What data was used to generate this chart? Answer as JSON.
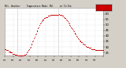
{
  "title": "Mil. Weather     Temperature Made: Mil     at 11:15a",
  "bg_color": "#d4d0c8",
  "plot_bg_color": "#ffffff",
  "line_color": "#cc0000",
  "legend_color": "#cc0000",
  "ylim": [
    22,
    65
  ],
  "y_ticks": [
    25,
    30,
    35,
    40,
    45,
    50,
    55,
    60,
    65
  ],
  "xlim": [
    0,
    1440
  ],
  "vline1": 180,
  "vline2": 780,
  "temps": [
    28,
    28,
    27,
    27,
    27,
    26,
    26,
    26,
    25,
    25,
    25,
    24,
    24,
    24,
    23,
    23,
    23,
    23,
    22,
    22,
    22,
    22,
    22,
    22,
    22,
    22,
    22,
    22,
    23,
    23,
    24,
    24,
    25,
    26,
    27,
    28,
    29,
    30,
    32,
    33,
    35,
    36,
    38,
    39,
    41,
    42,
    44,
    45,
    47,
    48,
    50,
    51,
    52,
    53,
    54,
    55,
    55,
    56,
    56,
    57,
    57,
    57,
    58,
    58,
    58,
    58,
    59,
    59,
    59,
    59,
    59,
    59,
    59,
    59,
    59,
    59,
    59,
    59,
    59,
    60,
    59,
    59,
    59,
    58,
    58,
    57,
    57,
    56,
    56,
    55,
    54,
    53,
    52,
    51,
    50,
    49,
    48,
    47,
    46,
    45,
    44,
    43,
    42,
    41,
    40,
    39,
    38,
    37,
    36,
    36,
    35,
    34,
    34,
    33,
    33,
    32,
    32,
    31,
    31,
    30,
    30,
    30,
    29,
    29,
    29,
    29,
    28,
    28,
    28,
    28,
    28,
    27,
    27,
    27,
    27,
    27,
    27,
    27,
    27,
    27,
    27,
    27,
    27,
    27
  ],
  "num_points": 144,
  "x_tick_positions": [
    0,
    120,
    240,
    360,
    480,
    600,
    720,
    840,
    960,
    1080,
    1200,
    1320,
    1440
  ],
  "x_labels": [
    "01",
    "03",
    "05",
    "07",
    "09",
    "11",
    "13",
    "15",
    "17",
    "19",
    "21",
    "23",
    ""
  ],
  "x_labels2": [
    "00",
    "00",
    "00",
    "00",
    "00",
    "00",
    "00",
    "00",
    "00",
    "00",
    "00",
    "00",
    ""
  ]
}
